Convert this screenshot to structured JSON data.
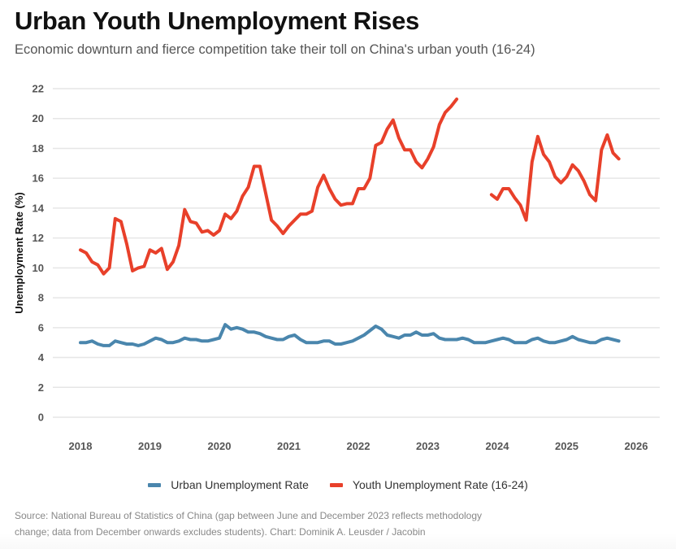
{
  "header": {
    "title": "Urban Youth Unemployment Rises",
    "subtitle": "Economic downturn and fierce competition take their toll on China's urban youth (16-24)"
  },
  "footer": {
    "source": "Source: National Bureau of Statistics of China (gap between June and December 2023 reflects methodology change; data from December onwards excludes students). Chart: Dominik A. Leusder / Jacobin"
  },
  "legend": [
    {
      "label": "Urban Unemployment Rate",
      "color": "#4a86ad"
    },
    {
      "label": "Youth Unemployment Rate (16-24)",
      "color": "#e8402a"
    }
  ],
  "chart_data": {
    "type": "line",
    "title": "Urban Youth Unemployment Rises",
    "subtitle": "Economic downturn and fierce competition take their toll on China's urban youth (16-24)",
    "xlabel": "",
    "ylabel": "Unemployment Rate (%)",
    "x_start": "2018-01",
    "x_frequency": "monthly",
    "xlim": [
      2018,
      2026
    ],
    "ylim": [
      0,
      22
    ],
    "x_ticks": [
      "2018",
      "2019",
      "2020",
      "2021",
      "2022",
      "2023",
      "2024",
      "2025",
      "2026"
    ],
    "y_ticks": [
      "0",
      "2",
      "4",
      "6",
      "8",
      "10",
      "12",
      "14",
      "16",
      "18",
      "20",
      "22"
    ],
    "grid": "horizontal",
    "legend_position": "bottom",
    "series": [
      {
        "name": "Urban Unemployment Rate",
        "color": "#4a86ad",
        "start_month_index": 0,
        "values": [
          5.0,
          5.0,
          5.1,
          4.9,
          4.8,
          4.8,
          5.1,
          5.0,
          4.9,
          4.9,
          4.8,
          4.9,
          5.1,
          5.3,
          5.2,
          5.0,
          5.0,
          5.1,
          5.3,
          5.2,
          5.2,
          5.1,
          5.1,
          5.2,
          5.3,
          6.2,
          5.9,
          6.0,
          5.9,
          5.7,
          5.7,
          5.6,
          5.4,
          5.3,
          5.2,
          5.2,
          5.4,
          5.5,
          5.2,
          5.0,
          5.0,
          5.0,
          5.1,
          5.1,
          4.9,
          4.9,
          5.0,
          5.1,
          5.3,
          5.5,
          5.8,
          6.1,
          5.9,
          5.5,
          5.4,
          5.3,
          5.5,
          5.5,
          5.7,
          5.5,
          5.5,
          5.6,
          5.3,
          5.2,
          5.2,
          5.2,
          5.3,
          5.2,
          5.0,
          5.0,
          5.0,
          5.1,
          5.2,
          5.3,
          5.2,
          5.0,
          5.0,
          5.0,
          5.2,
          5.3,
          5.1,
          5.0,
          5.0,
          5.1,
          5.2,
          5.4,
          5.2,
          5.1,
          5.0,
          5.0,
          5.2,
          5.3,
          5.2,
          5.1
        ]
      },
      {
        "name": "Youth Unemployment Rate (16-24)",
        "color": "#e8402a",
        "segments": [
          {
            "start_month_index": 0,
            "values": [
              11.2,
              11.0,
              10.4,
              10.2,
              9.6,
              10.0,
              13.3,
              13.1,
              11.6,
              9.8,
              10.0,
              10.1,
              11.2,
              11.0,
              11.3,
              9.9,
              10.4,
              11.5,
              13.9,
              13.1,
              13.0,
              12.4,
              12.5,
              12.2,
              12.5,
              13.6,
              13.3,
              13.8,
              14.8,
              15.4,
              16.8,
              16.8,
              15.0,
              13.2,
              12.8,
              12.3,
              12.8,
              13.2,
              13.6,
              13.6,
              13.8,
              15.4,
              16.2,
              15.3,
              14.6,
              14.2,
              14.3,
              14.3,
              15.3,
              15.3,
              16.0,
              18.2,
              18.4,
              19.3,
              19.9,
              18.7,
              17.9,
              17.9,
              17.1,
              16.7,
              17.3,
              18.1,
              19.6,
              20.4,
              20.8,
              21.3
            ]
          },
          {
            "start_month_index": 71,
            "values": [
              14.9,
              14.6,
              15.3,
              15.3,
              14.7,
              14.2,
              13.2,
              17.1,
              18.8,
              17.6,
              17.1,
              16.1,
              15.7,
              16.1,
              16.9,
              16.5,
              15.8,
              14.9,
              14.5,
              17.9,
              18.9,
              17.7,
              17.3
            ]
          }
        ]
      }
    ]
  }
}
